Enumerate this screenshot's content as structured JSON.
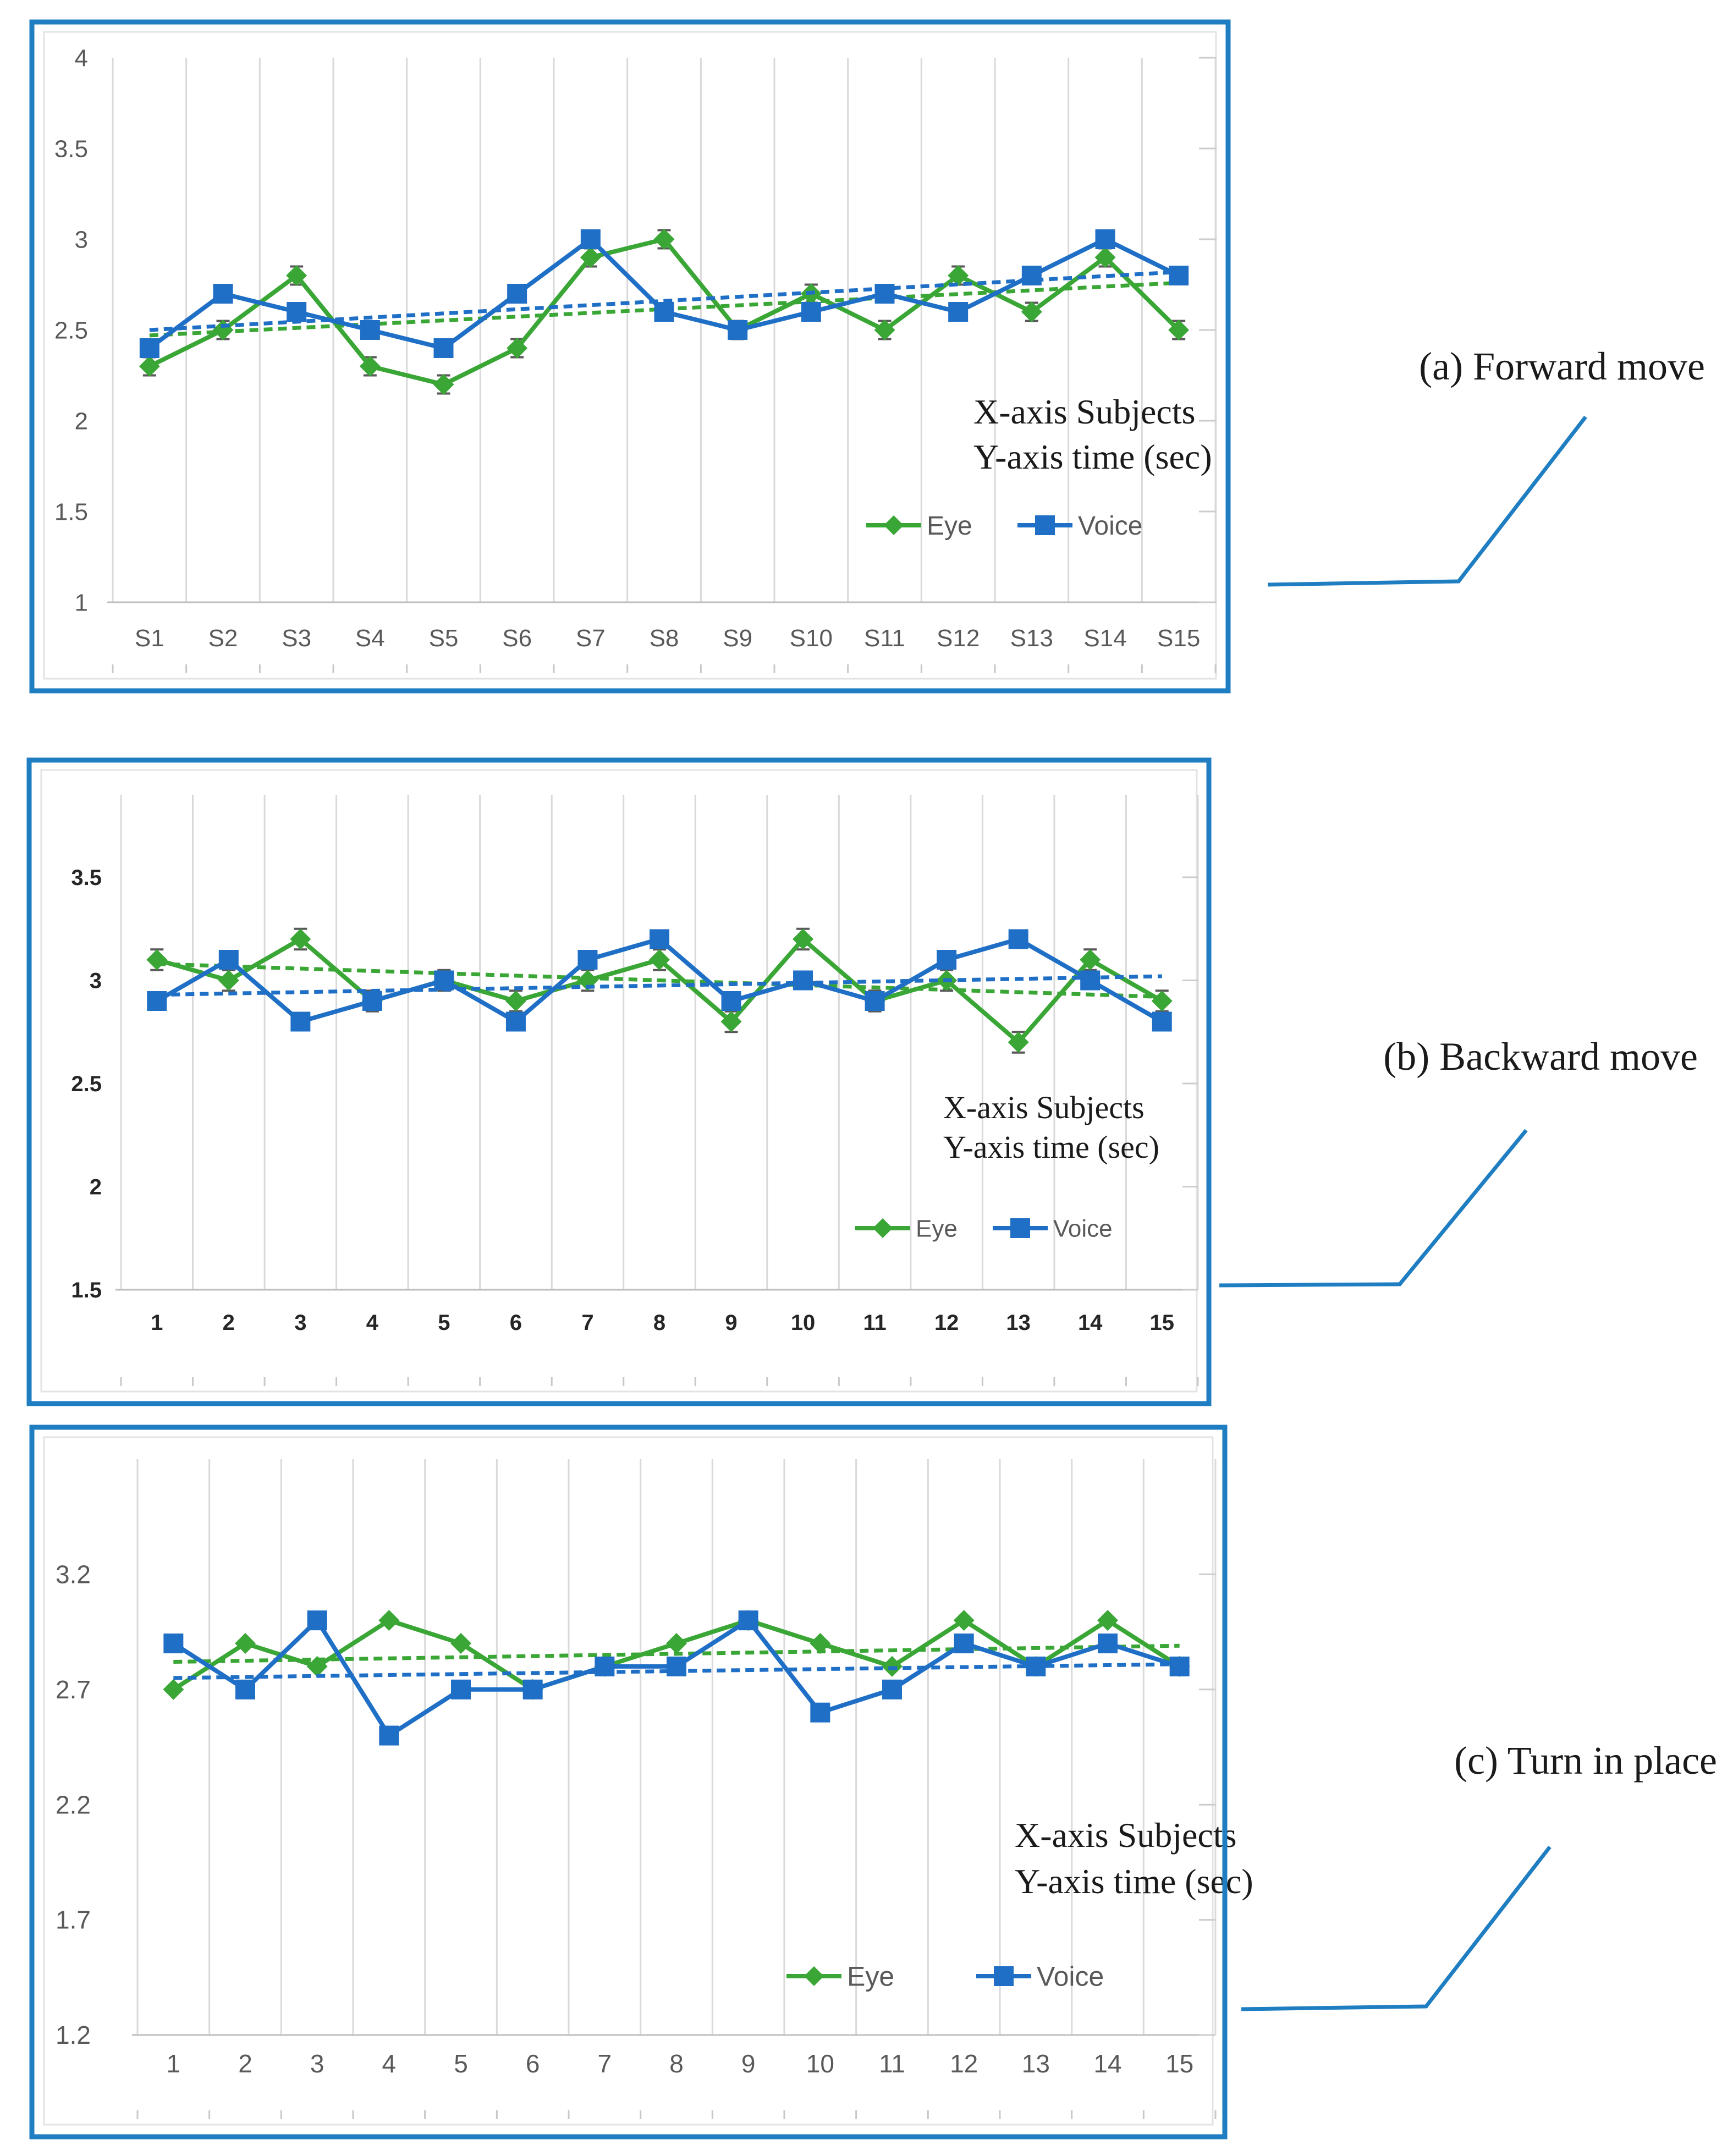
{
  "chart_data": [
    {
      "type": "line",
      "caption": "(a) Forward move",
      "axis_note": [
        "X-axis  Subjects",
        "Y-axis   time (sec)"
      ],
      "categories": [
        "S1",
        "S2",
        "S3",
        "S4",
        "S5",
        "S6",
        "S7",
        "S8",
        "S9",
        "S10",
        "S11",
        "S12",
        "S13",
        "S14",
        "S15"
      ],
      "yticks": [
        "1",
        "1.5",
        "2",
        "2.5",
        "3",
        "3.5",
        "4"
      ],
      "ylim": [
        1,
        4
      ],
      "series": [
        {
          "name": "Eye",
          "color": "#3aa635",
          "marker": "diamond",
          "error_bars": true,
          "values": [
            2.3,
            2.5,
            2.8,
            2.3,
            2.2,
            2.4,
            2.9,
            3.0,
            2.5,
            2.7,
            2.5,
            2.8,
            2.6,
            2.9,
            2.5
          ],
          "trend": [
            2.47,
            2.76
          ]
        },
        {
          "name": "Voice",
          "color": "#1f6fc6",
          "marker": "square",
          "error_bars": false,
          "values": [
            2.4,
            2.7,
            2.6,
            2.5,
            2.4,
            2.7,
            3.0,
            2.6,
            2.5,
            2.6,
            2.7,
            2.6,
            2.8,
            3.0,
            2.8
          ],
          "trend": [
            2.5,
            2.82
          ]
        }
      ]
    },
    {
      "type": "line",
      "caption": "(b) Backward move",
      "axis_note": [
        "X-axis  Subjects",
        "Y-axis   time (sec)"
      ],
      "categories": [
        "1",
        "2",
        "3",
        "4",
        "5",
        "6",
        "7",
        "8",
        "9",
        "10",
        "11",
        "12",
        "13",
        "14",
        "15"
      ],
      "yticks": [
        "1.5",
        "2",
        "2.5",
        "3",
        "3.5"
      ],
      "ylim": [
        1.5,
        3.9
      ],
      "series": [
        {
          "name": "Eye",
          "color": "#3aa635",
          "marker": "diamond",
          "error_bars": true,
          "values": [
            3.1,
            3.0,
            3.2,
            2.9,
            3.0,
            2.9,
            3.0,
            3.1,
            2.8,
            3.2,
            2.9,
            3.0,
            2.7,
            3.1,
            2.9
          ],
          "trend": [
            3.08,
            2.92
          ]
        },
        {
          "name": "Voice",
          "color": "#1f6fc6",
          "marker": "square",
          "error_bars": false,
          "values": [
            2.9,
            3.1,
            2.8,
            2.9,
            3.0,
            2.8,
            3.1,
            3.2,
            2.9,
            3.0,
            2.9,
            3.1,
            3.2,
            3.0,
            2.8
          ],
          "trend": [
            2.93,
            3.02
          ]
        }
      ]
    },
    {
      "type": "line",
      "caption": "(c) Turn in place",
      "axis_note": [
        "X-axis  Subjects",
        "Y-axis  time (sec)"
      ],
      "categories": [
        "1",
        "2",
        "3",
        "4",
        "5",
        "6",
        "7",
        "8",
        "9",
        "10",
        "11",
        "12",
        "13",
        "14",
        "15"
      ],
      "yticks": [
        "1.2",
        "1.7",
        "2.2",
        "2.7",
        "3.2"
      ],
      "ylim": [
        1.2,
        3.7
      ],
      "series": [
        {
          "name": "Eye",
          "color": "#3aa635",
          "marker": "diamond",
          "error_bars": false,
          "values": [
            2.7,
            2.9,
            2.8,
            3.0,
            2.9,
            2.7,
            2.8,
            2.9,
            3.0,
            2.9,
            2.8,
            3.0,
            2.8,
            3.0,
            2.8
          ],
          "trend": [
            2.82,
            2.89
          ]
        },
        {
          "name": "Voice",
          "color": "#1f6fc6",
          "marker": "square",
          "error_bars": false,
          "values": [
            2.9,
            2.7,
            3.0,
            2.5,
            2.7,
            2.7,
            2.8,
            2.8,
            3.0,
            2.6,
            2.7,
            2.9,
            2.8,
            2.9,
            2.8
          ],
          "trend": [
            2.75,
            2.81
          ]
        }
      ]
    }
  ],
  "colors": {
    "frame": "#1f7ec1",
    "grid": "#d9d9d9",
    "eye": "#3aa635",
    "voice": "#1f6fc6"
  }
}
